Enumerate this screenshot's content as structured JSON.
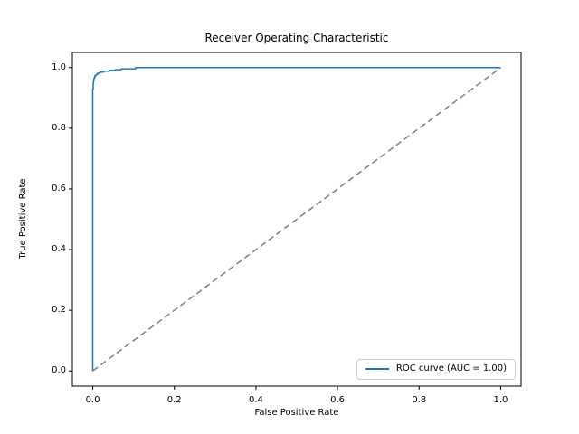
{
  "chart_data": {
    "type": "line",
    "title": "Receiver Operating Characteristic",
    "xlabel": "False Positive Rate",
    "ylabel": "True Positive Rate",
    "xlim": [
      -0.05,
      1.05
    ],
    "ylim": [
      -0.05,
      1.05
    ],
    "xticks": [
      0.0,
      0.2,
      0.4,
      0.6,
      0.8,
      1.0
    ],
    "yticks": [
      0.0,
      0.2,
      0.4,
      0.6,
      0.8,
      1.0
    ],
    "grid": false,
    "legend_position": "lower right",
    "auc": "1.00",
    "series": [
      {
        "id": "roc-curve",
        "name": "ROC curve (AUC = 1.00)",
        "color": "#1f77b4",
        "dashed": false,
        "in_legend": true,
        "points": [
          [
            0.0,
            0.0
          ],
          [
            0.0,
            0.93
          ],
          [
            0.001,
            0.93
          ],
          [
            0.001,
            0.948
          ],
          [
            0.002,
            0.948
          ],
          [
            0.002,
            0.958
          ],
          [
            0.003,
            0.958
          ],
          [
            0.003,
            0.966
          ],
          [
            0.005,
            0.966
          ],
          [
            0.005,
            0.973
          ],
          [
            0.008,
            0.973
          ],
          [
            0.008,
            0.978
          ],
          [
            0.012,
            0.978
          ],
          [
            0.012,
            0.982
          ],
          [
            0.018,
            0.982
          ],
          [
            0.018,
            0.985
          ],
          [
            0.027,
            0.985
          ],
          [
            0.027,
            0.988
          ],
          [
            0.04,
            0.988
          ],
          [
            0.04,
            0.991
          ],
          [
            0.055,
            0.991
          ],
          [
            0.055,
            0.993
          ],
          [
            0.07,
            0.993
          ],
          [
            0.07,
            0.996
          ],
          [
            0.105,
            0.996
          ],
          [
            0.105,
            1.0
          ],
          [
            1.0,
            1.0
          ]
        ]
      },
      {
        "id": "chance-diagonal",
        "name": null,
        "color": "#808080",
        "dashed": true,
        "in_legend": false,
        "points": [
          [
            0.0,
            0.0
          ],
          [
            1.0,
            1.0
          ]
        ]
      }
    ]
  }
}
